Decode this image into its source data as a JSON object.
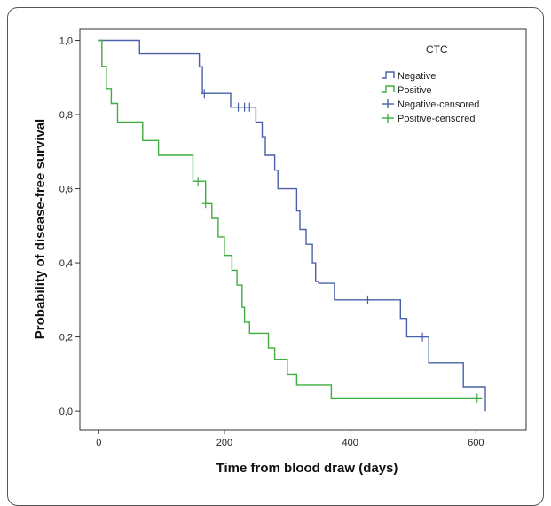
{
  "chart_data": {
    "type": "line",
    "subtype": "kaplan-meier step",
    "title": "",
    "xlabel": "Time from blood draw (days)",
    "ylabel": "Probability of disease-free survival",
    "xlim": [
      -30,
      680
    ],
    "ylim": [
      -0.05,
      1.03
    ],
    "x_ticks": [
      0,
      200,
      400,
      600
    ],
    "y_ticks": [
      0.0,
      0.2,
      0.4,
      0.6,
      0.8,
      1.0
    ],
    "x_tick_labels": [
      "0",
      "200",
      "400",
      "600"
    ],
    "y_tick_labels": [
      "0,0",
      "0,2",
      "0,4",
      "0,6",
      "0,8",
      "1,0"
    ],
    "grid": false,
    "legend": {
      "title": "CTC",
      "placement": "top-right",
      "entries": [
        "Negative",
        "Positive",
        "Negative-censored",
        "Positive-censored"
      ]
    },
    "series": [
      {
        "name": "Negative",
        "color": "#4a60a8",
        "points": [
          [
            0,
            1.0
          ],
          [
            65,
            1.0
          ],
          [
            65,
            0.964
          ],
          [
            160,
            0.964
          ],
          [
            160,
            0.929
          ],
          [
            165,
            0.929
          ],
          [
            165,
            0.857
          ],
          [
            210,
            0.857
          ],
          [
            210,
            0.82
          ],
          [
            250,
            0.82
          ],
          [
            250,
            0.78
          ],
          [
            260,
            0.78
          ],
          [
            260,
            0.74
          ],
          [
            265,
            0.74
          ],
          [
            265,
            0.69
          ],
          [
            280,
            0.69
          ],
          [
            280,
            0.65
          ],
          [
            285,
            0.65
          ],
          [
            285,
            0.6
          ],
          [
            315,
            0.6
          ],
          [
            315,
            0.54
          ],
          [
            320,
            0.54
          ],
          [
            320,
            0.49
          ],
          [
            330,
            0.49
          ],
          [
            330,
            0.45
          ],
          [
            340,
            0.45
          ],
          [
            340,
            0.4
          ],
          [
            345,
            0.4
          ],
          [
            345,
            0.35
          ],
          [
            350,
            0.35
          ],
          [
            350,
            0.345
          ],
          [
            375,
            0.345
          ],
          [
            375,
            0.3
          ],
          [
            480,
            0.3
          ],
          [
            480,
            0.25
          ],
          [
            490,
            0.25
          ],
          [
            490,
            0.2
          ],
          [
            525,
            0.2
          ],
          [
            525,
            0.13
          ],
          [
            580,
            0.13
          ],
          [
            580,
            0.065
          ],
          [
            615,
            0.065
          ],
          [
            615,
            0.0
          ]
        ],
        "censored": [
          [
            168,
            0.857
          ],
          [
            222,
            0.82
          ],
          [
            232,
            0.82
          ],
          [
            240,
            0.82
          ],
          [
            428,
            0.3
          ],
          [
            515,
            0.2
          ]
        ]
      },
      {
        "name": "Positive",
        "color": "#3fae3f",
        "points": [
          [
            0,
            1.0
          ],
          [
            5,
            1.0
          ],
          [
            5,
            0.93
          ],
          [
            12,
            0.93
          ],
          [
            12,
            0.87
          ],
          [
            20,
            0.87
          ],
          [
            20,
            0.83
          ],
          [
            30,
            0.83
          ],
          [
            30,
            0.78
          ],
          [
            70,
            0.78
          ],
          [
            70,
            0.73
          ],
          [
            95,
            0.73
          ],
          [
            95,
            0.69
          ],
          [
            150,
            0.69
          ],
          [
            150,
            0.62
          ],
          [
            170,
            0.62
          ],
          [
            170,
            0.56
          ],
          [
            180,
            0.56
          ],
          [
            180,
            0.52
          ],
          [
            190,
            0.52
          ],
          [
            190,
            0.47
          ],
          [
            200,
            0.47
          ],
          [
            200,
            0.42
          ],
          [
            212,
            0.42
          ],
          [
            212,
            0.38
          ],
          [
            220,
            0.38
          ],
          [
            220,
            0.34
          ],
          [
            228,
            0.34
          ],
          [
            228,
            0.28
          ],
          [
            232,
            0.28
          ],
          [
            232,
            0.24
          ],
          [
            240,
            0.24
          ],
          [
            240,
            0.21
          ],
          [
            270,
            0.21
          ],
          [
            270,
            0.17
          ],
          [
            280,
            0.17
          ],
          [
            280,
            0.14
          ],
          [
            300,
            0.14
          ],
          [
            300,
            0.1
          ],
          [
            315,
            0.1
          ],
          [
            315,
            0.07
          ],
          [
            370,
            0.07
          ],
          [
            370,
            0.035
          ],
          [
            610,
            0.035
          ]
        ],
        "censored": [
          [
            158,
            0.62
          ],
          [
            170,
            0.56
          ],
          [
            602,
            0.035
          ]
        ]
      }
    ]
  }
}
